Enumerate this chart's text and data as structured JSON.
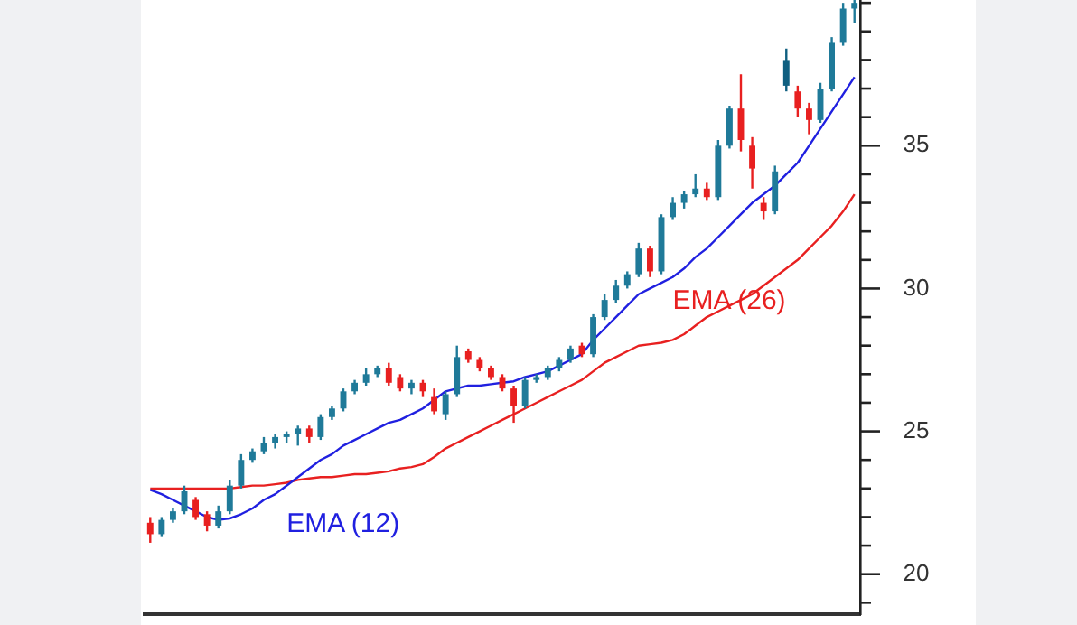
{
  "chart_data": {
    "type": "candlestick",
    "categories": [
      null,
      null,
      null,
      null,
      null,
      null,
      null,
      null,
      null,
      null,
      null,
      null,
      null,
      null,
      null,
      null,
      null,
      null,
      null,
      null,
      null,
      null,
      null,
      null,
      null,
      null,
      null,
      null,
      null,
      null,
      null,
      null,
      null,
      null,
      null,
      null,
      null,
      null,
      null,
      null,
      null,
      null,
      null,
      null,
      null,
      null,
      null,
      null,
      null,
      null,
      null,
      null,
      null,
      null,
      null,
      null,
      null,
      null,
      null,
      null,
      null,
      null,
      null
    ],
    "ohlc": [
      [
        21.8,
        22.0,
        21.1,
        21.4
      ],
      [
        21.4,
        22.0,
        21.3,
        21.9
      ],
      [
        21.9,
        22.3,
        21.8,
        22.2
      ],
      [
        22.2,
        23.1,
        22.1,
        22.9
      ],
      [
        22.6,
        22.7,
        21.9,
        22.0
      ],
      [
        22.1,
        22.2,
        21.5,
        21.7
      ],
      [
        21.7,
        22.4,
        21.6,
        22.2
      ],
      [
        22.2,
        23.3,
        22.1,
        23.1
      ],
      [
        23.1,
        24.2,
        23.0,
        24.0
      ],
      [
        24.0,
        24.4,
        23.9,
        24.3
      ],
      [
        24.3,
        24.8,
        24.2,
        24.6
      ],
      [
        24.6,
        24.9,
        24.4,
        24.8
      ],
      [
        24.8,
        25.0,
        24.6,
        24.9
      ],
      [
        24.9,
        25.2,
        24.5,
        25.1
      ],
      [
        25.1,
        25.2,
        24.6,
        24.8
      ],
      [
        24.8,
        25.6,
        24.7,
        25.5
      ],
      [
        25.5,
        25.9,
        25.4,
        25.8
      ],
      [
        25.8,
        26.5,
        25.7,
        26.4
      ],
      [
        26.4,
        26.8,
        26.3,
        26.7
      ],
      [
        26.7,
        27.2,
        26.6,
        27.0
      ],
      [
        27.0,
        27.3,
        26.9,
        27.2
      ],
      [
        27.2,
        27.4,
        26.6,
        26.7
      ],
      [
        26.9,
        27.0,
        26.4,
        26.5
      ],
      [
        26.5,
        26.8,
        26.3,
        26.7
      ],
      [
        26.7,
        26.8,
        26.2,
        26.4
      ],
      [
        26.2,
        26.5,
        25.6,
        25.7
      ],
      [
        25.6,
        26.4,
        25.4,
        26.3
      ],
      [
        26.3,
        28.0,
        26.2,
        27.6
      ],
      [
        27.8,
        27.9,
        27.4,
        27.5
      ],
      [
        27.5,
        27.6,
        27.1,
        27.2
      ],
      [
        27.2,
        27.3,
        26.8,
        26.9
      ],
      [
        26.9,
        27.0,
        26.4,
        26.5
      ],
      [
        26.5,
        26.6,
        25.3,
        25.9
      ],
      [
        25.9,
        26.9,
        25.8,
        26.8
      ],
      [
        26.8,
        27.0,
        26.7,
        26.9
      ],
      [
        26.9,
        27.3,
        26.8,
        27.2
      ],
      [
        27.2,
        27.6,
        27.1,
        27.5
      ],
      [
        27.5,
        28.0,
        27.4,
        27.9
      ],
      [
        28.0,
        28.1,
        27.6,
        27.7
      ],
      [
        27.7,
        29.1,
        27.6,
        29.0
      ],
      [
        29.0,
        29.8,
        28.9,
        29.6
      ],
      [
        29.6,
        30.3,
        29.5,
        30.1
      ],
      [
        30.1,
        30.6,
        30.0,
        30.5
      ],
      [
        30.5,
        31.6,
        30.4,
        31.4
      ],
      [
        31.4,
        31.5,
        30.4,
        30.6
      ],
      [
        30.6,
        32.6,
        30.5,
        32.5
      ],
      [
        32.5,
        33.2,
        32.4,
        33.0
      ],
      [
        33.0,
        33.4,
        32.8,
        33.3
      ],
      [
        33.3,
        34.0,
        33.2,
        33.5
      ],
      [
        33.5,
        33.7,
        33.1,
        33.2
      ],
      [
        33.2,
        35.2,
        33.1,
        35.0
      ],
      [
        35.0,
        36.4,
        34.9,
        36.3
      ],
      [
        36.3,
        37.5,
        34.8,
        35.2
      ],
      [
        35.0,
        35.3,
        33.5,
        34.2
      ],
      [
        33.0,
        33.2,
        32.4,
        32.7
      ],
      [
        32.7,
        34.3,
        32.6,
        34.1
      ],
      [
        37.1,
        38.4,
        36.9,
        38.0
      ],
      [
        36.9,
        37.1,
        36.0,
        36.3
      ],
      [
        36.3,
        36.5,
        35.4,
        35.9
      ],
      [
        35.9,
        37.2,
        35.8,
        37.0
      ],
      [
        37.0,
        38.8,
        36.9,
        38.6
      ],
      [
        38.6,
        40.0,
        38.5,
        39.8
      ],
      [
        39.8,
        40.1,
        39.3,
        40.0
      ]
    ],
    "colors": [
      "#e82020",
      "#1f7a99",
      "#1f7a99",
      "#1f7a99",
      "#e82020",
      "#e82020",
      "#1f7a99",
      "#1f7a99",
      "#1f7a99",
      "#1f7a99",
      "#1f7a99",
      "#1f7a99",
      "#1f7a99",
      "#1f7a99",
      "#e82020",
      "#1f7a99",
      "#1f7a99",
      "#1f7a99",
      "#1f7a99",
      "#1f7a99",
      "#1f7a99",
      "#e82020",
      "#e82020",
      "#1f7a99",
      "#e82020",
      "#e82020",
      "#1f7a99",
      "#1f7a99",
      "#e82020",
      "#e82020",
      "#e82020",
      "#e82020",
      "#e82020",
      "#1f7a99",
      "#1f7a99",
      "#1f7a99",
      "#1f7a99",
      "#1f7a99",
      "#e82020",
      "#1f7a99",
      "#1f7a99",
      "#1f7a99",
      "#1f7a99",
      "#1f7a99",
      "#e82020",
      "#1f7a99",
      "#1f7a99",
      "#1f7a99",
      "#1f7a99",
      "#e82020",
      "#1f7a99",
      "#1f7a99",
      "#e82020",
      "#e82020",
      "#e82020",
      "#1f7a99",
      "#0f5f80",
      "#e82020",
      "#e82020",
      "#1f7a99",
      "#1f7a99",
      "#1f7a99",
      "#1f7a99"
    ],
    "series": [
      {
        "type": "line",
        "name": "EMA (12)",
        "color": "#2020e0",
        "values": [
          22.95,
          22.8,
          22.6,
          22.4,
          22.2,
          22.0,
          21.9,
          21.95,
          22.1,
          22.3,
          22.6,
          22.8,
          23.1,
          23.4,
          23.7,
          24.0,
          24.2,
          24.5,
          24.7,
          24.9,
          25.1,
          25.3,
          25.4,
          25.6,
          25.8,
          26.1,
          26.4,
          26.5,
          26.6,
          26.6,
          26.65,
          26.7,
          26.75,
          26.9,
          27.0,
          27.1,
          27.3,
          27.5,
          27.7,
          28.2,
          28.6,
          29.0,
          29.4,
          29.8,
          30.0,
          30.2,
          30.4,
          30.7,
          31.1,
          31.4,
          31.8,
          32.2,
          32.6,
          33.0,
          33.3,
          33.6,
          34.0,
          34.4,
          35.0,
          35.6,
          36.2,
          36.8,
          37.4
        ]
      },
      {
        "type": "line",
        "name": "EMA (26)",
        "color": "#e82020",
        "values": [
          23.0,
          23.0,
          23.0,
          23.0,
          23.0,
          23.0,
          23.0,
          23.0,
          23.05,
          23.1,
          23.1,
          23.15,
          23.2,
          23.3,
          23.35,
          23.4,
          23.4,
          23.45,
          23.5,
          23.5,
          23.55,
          23.6,
          23.7,
          23.75,
          23.85,
          24.1,
          24.4,
          24.6,
          24.8,
          25.0,
          25.2,
          25.4,
          25.6,
          25.8,
          26.0,
          26.2,
          26.4,
          26.6,
          26.8,
          27.1,
          27.4,
          27.6,
          27.8,
          28.0,
          28.05,
          28.1,
          28.2,
          28.4,
          28.7,
          29.0,
          29.2,
          29.4,
          29.6,
          29.8,
          30.1,
          30.4,
          30.7,
          31.0,
          31.4,
          31.8,
          32.2,
          32.7,
          33.3
        ]
      }
    ],
    "ylim": [
      18.6,
      40.1
    ],
    "yticks": [
      {
        "value": 19,
        "label": null
      },
      20,
      {
        "value": 21,
        "label": null
      },
      {
        "value": 22,
        "label": null
      },
      {
        "value": 23,
        "label": null
      },
      {
        "value": 24,
        "label": null
      },
      25,
      {
        "value": 26,
        "label": null
      },
      {
        "value": 27,
        "label": null
      },
      {
        "value": 28,
        "label": null
      },
      {
        "value": 29,
        "label": null
      },
      30,
      {
        "value": 31,
        "label": null
      },
      {
        "value": 32,
        "label": null
      },
      {
        "value": 33,
        "label": null
      },
      {
        "value": 34,
        "label": null
      },
      35,
      {
        "value": 36,
        "label": null
      },
      {
        "value": 37,
        "label": null
      },
      {
        "value": 38,
        "label": null
      },
      {
        "value": 39,
        "label": null
      },
      {
        "value": 40,
        "label": null
      }
    ],
    "tick_labels": "y",
    "grid": false,
    "legend": false,
    "marker": "none"
  }
}
